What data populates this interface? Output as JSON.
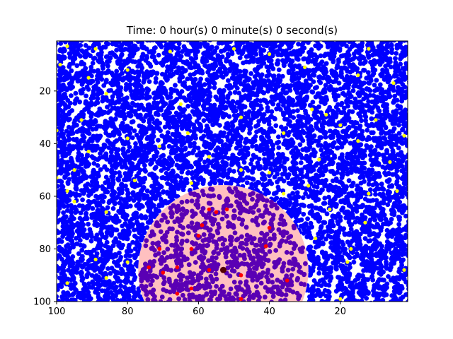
{
  "chart_data": {
    "type": "scatter",
    "title": "Time: 0 hour(s) 0 minute(s) 0 second(s)",
    "xlabel": "",
    "ylabel": "",
    "xlim": [
      100,
      1
    ],
    "ylim": [
      100,
      1
    ],
    "x_ticks": [
      100,
      80,
      60,
      40,
      20
    ],
    "y_ticks": [
      20,
      40,
      60,
      80,
      100
    ],
    "grid": false,
    "legend": "none",
    "colors": {
      "particles": "#0000ff",
      "highlight": "#ffff00",
      "zone_fill": "#ffc0c0",
      "zone_particles": "#5a00b4",
      "infected": "#ff0000",
      "center": "#550000"
    },
    "zone": {
      "center_x": 53,
      "center_y": 88,
      "radius": 24
    },
    "center_point": {
      "x": 53,
      "y": 88
    },
    "infected_points": [
      {
        "x": 55,
        "y": 66
      },
      {
        "x": 52,
        "y": 65
      },
      {
        "x": 57,
        "y": 65
      },
      {
        "x": 59,
        "y": 71
      },
      {
        "x": 40,
        "y": 72
      },
      {
        "x": 60,
        "y": 75
      },
      {
        "x": 71,
        "y": 80
      },
      {
        "x": 62,
        "y": 80
      },
      {
        "x": 41,
        "y": 79
      },
      {
        "x": 74,
        "y": 87
      },
      {
        "x": 66,
        "y": 87
      },
      {
        "x": 57,
        "y": 88
      },
      {
        "x": 70,
        "y": 89
      },
      {
        "x": 48,
        "y": 90
      },
      {
        "x": 35,
        "y": 92
      },
      {
        "x": 62,
        "y": 95
      },
      {
        "x": 66,
        "y": 97
      },
      {
        "x": 48,
        "y": 99
      }
    ],
    "highlight_points": [
      {
        "x": 97,
        "y": 3
      },
      {
        "x": 89,
        "y": 4
      },
      {
        "x": 68,
        "y": 5
      },
      {
        "x": 50,
        "y": 4
      },
      {
        "x": 40,
        "y": 6
      },
      {
        "x": 12,
        "y": 4
      },
      {
        "x": 99,
        "y": 10
      },
      {
        "x": 80,
        "y": 12
      },
      {
        "x": 30,
        "y": 11
      },
      {
        "x": 15,
        "y": 14
      },
      {
        "x": 91,
        "y": 15
      },
      {
        "x": 5,
        "y": 17
      },
      {
        "x": 86,
        "y": 21
      },
      {
        "x": 65,
        "y": 25
      },
      {
        "x": 28,
        "y": 27
      },
      {
        "x": 24,
        "y": 29
      },
      {
        "x": 48,
        "y": 30
      },
      {
        "x": 93,
        "y": 31
      },
      {
        "x": 10,
        "y": 31
      },
      {
        "x": 20,
        "y": 33
      },
      {
        "x": 100,
        "y": 35
      },
      {
        "x": 63,
        "y": 36
      },
      {
        "x": 36,
        "y": 36
      },
      {
        "x": 2,
        "y": 37
      },
      {
        "x": 80,
        "y": 38
      },
      {
        "x": 15,
        "y": 39
      },
      {
        "x": 71,
        "y": 41
      },
      {
        "x": 91,
        "y": 43
      },
      {
        "x": 57,
        "y": 45
      },
      {
        "x": 26,
        "y": 46
      },
      {
        "x": 6,
        "y": 47
      },
      {
        "x": 95,
        "y": 50
      },
      {
        "x": 48,
        "y": 50
      },
      {
        "x": 40,
        "y": 51
      },
      {
        "x": 100,
        "y": 53
      },
      {
        "x": 78,
        "y": 54
      },
      {
        "x": 62,
        "y": 55
      },
      {
        "x": 29,
        "y": 56
      },
      {
        "x": 97,
        "y": 58
      },
      {
        "x": 47,
        "y": 58
      },
      {
        "x": 36,
        "y": 59
      },
      {
        "x": 12,
        "y": 59
      },
      {
        "x": 4,
        "y": 58
      },
      {
        "x": 95,
        "y": 62
      },
      {
        "x": 86,
        "y": 66
      },
      {
        "x": 23,
        "y": 65
      },
      {
        "x": 13,
        "y": 70
      },
      {
        "x": 27,
        "y": 76
      },
      {
        "x": 17,
        "y": 80
      },
      {
        "x": 89,
        "y": 84
      },
      {
        "x": 80,
        "y": 85
      },
      {
        "x": 18,
        "y": 85
      },
      {
        "x": 2,
        "y": 88
      },
      {
        "x": 86,
        "y": 91
      },
      {
        "x": 97,
        "y": 93
      },
      {
        "x": 20,
        "y": 99
      }
    ]
  }
}
